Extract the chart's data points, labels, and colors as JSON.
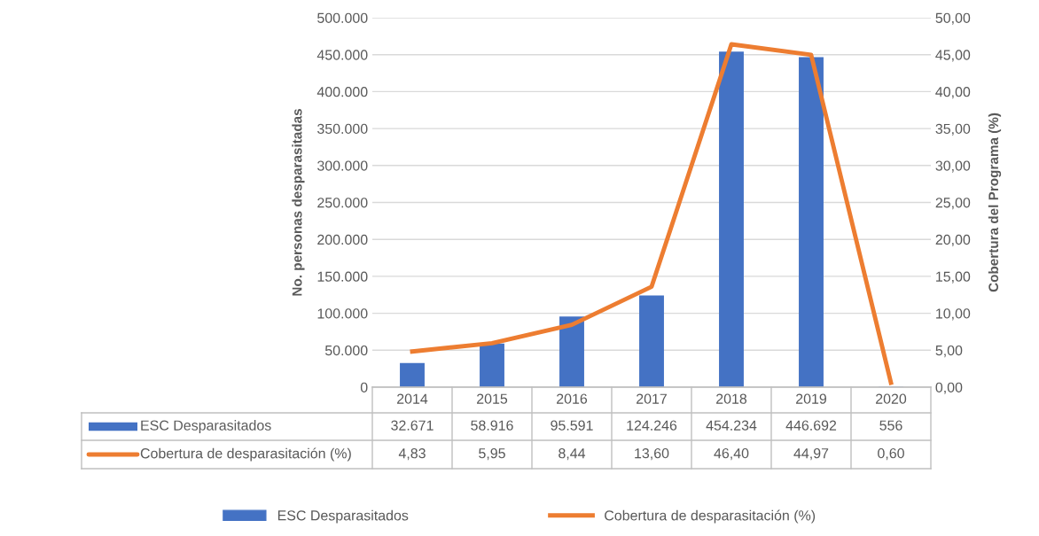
{
  "chart_data": {
    "type": "bar",
    "categories": [
      "2014",
      "2015",
      "2016",
      "2017",
      "2018",
      "2019",
      "2020"
    ],
    "series": [
      {
        "name": "ESC Desparasitados",
        "color": "#4472c4",
        "values": [
          32671,
          58916,
          95591,
          124246,
          454234,
          446692,
          556
        ],
        "value_labels": [
          "32.671",
          "58.916",
          "95.591",
          "124.246",
          "454.234",
          "446.692",
          "556"
        ]
      },
      {
        "name": "Cobertura de desparasitación (%)",
        "type": "line",
        "axis": "y2",
        "color": "#ed7d31",
        "values": [
          4.83,
          5.95,
          8.44,
          13.6,
          46.4,
          44.97,
          0.6
        ],
        "value_labels": [
          "4,83",
          "5,95",
          "8,44",
          "13,60",
          "46,40",
          "44,97",
          "0,60"
        ]
      }
    ],
    "ylabel": "No. personas desparasitadas",
    "y2label": "Cobertura del Programa (%)",
    "ylim": [
      0,
      500000
    ],
    "yticks": [
      {
        "value": 0,
        "label": "0"
      },
      {
        "value": 50000,
        "label": "50.000"
      },
      {
        "value": 100000,
        "label": "100.000"
      },
      {
        "value": 150000,
        "label": "150.000"
      },
      {
        "value": 200000,
        "label": "200.000"
      },
      {
        "value": 250000,
        "label": "250.000"
      },
      {
        "value": 300000,
        "label": "300.000"
      },
      {
        "value": 350000,
        "label": "350.000"
      },
      {
        "value": 400000,
        "label": "400.000"
      },
      {
        "value": 450000,
        "label": "450.000"
      },
      {
        "value": 500000,
        "label": "500.000"
      }
    ],
    "y2lim": [
      0,
      50
    ],
    "y2ticks": [
      {
        "value": 0,
        "label": "0,00"
      },
      {
        "value": 5,
        "label": "5,00"
      },
      {
        "value": 10,
        "label": "10,00"
      },
      {
        "value": 15,
        "label": "15,00"
      },
      {
        "value": 20,
        "label": "20,00"
      },
      {
        "value": 25,
        "label": "25,00"
      },
      {
        "value": 30,
        "label": "30,00"
      },
      {
        "value": 35,
        "label": "35,00"
      },
      {
        "value": 40,
        "label": "40,00"
      },
      {
        "value": 45,
        "label": "45,00"
      },
      {
        "value": 50,
        "label": "50,00"
      }
    ],
    "grid": "y",
    "legend": "bottom",
    "marker": "none",
    "line_style": "solid"
  }
}
